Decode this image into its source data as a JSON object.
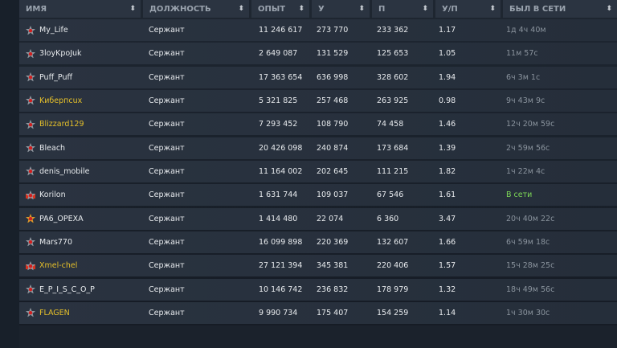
{
  "headers": [
    "Имя",
    "Должность",
    "Опыт",
    "У",
    "П",
    "У/П",
    "Был в сети"
  ],
  "colors": {
    "accent_name": "#e6c02a",
    "online": "#7ed957"
  },
  "rows": [
    {
      "name": "My_Life",
      "rank_icon": "star-gray",
      "highlight": false,
      "position": "Сержант",
      "exp": "11 246 617",
      "kills": "273 770",
      "deaths": "233 362",
      "kd": "1.17",
      "seen": "1д 4ч 40м"
    },
    {
      "name": "3loyKpoJuk",
      "rank_icon": "star-gray",
      "highlight": false,
      "position": "Сержант",
      "exp": "2 649 087",
      "kills": "131 529",
      "deaths": "125 653",
      "kd": "1.05",
      "seen": "11м 57с"
    },
    {
      "name": "Puff_Puff",
      "rank_icon": "star-gray",
      "highlight": false,
      "position": "Сержант",
      "exp": "17 363 654",
      "kills": "636 998",
      "deaths": "328 602",
      "kd": "1.94",
      "seen": "6ч 3м 1с"
    },
    {
      "name": "Kибepпcux",
      "rank_icon": "star-gray",
      "highlight": true,
      "position": "Сержант",
      "exp": "5 321 825",
      "kills": "257 468",
      "deaths": "263 925",
      "kd": "0.98",
      "seen": "9ч 43м 9с"
    },
    {
      "name": "Blizzard129",
      "rank_icon": "star-gray",
      "highlight": true,
      "position": "Сержант",
      "exp": "7 293 452",
      "kills": "108 790",
      "deaths": "74 458",
      "kd": "1.46",
      "seen": "12ч 20м 59с"
    },
    {
      "name": "Bleach",
      "rank_icon": "star-gray",
      "highlight": false,
      "position": "Сержант",
      "exp": "20 426 098",
      "kills": "240 874",
      "deaths": "173 684",
      "kd": "1.39",
      "seen": "2ч 59м 56с"
    },
    {
      "name": "denis_mobile",
      "rank_icon": "star-gray",
      "highlight": false,
      "position": "Сержант",
      "exp": "11 164 002",
      "kills": "202 645",
      "deaths": "111 215",
      "kd": "1.82",
      "seen": "1ч 22м 4с"
    },
    {
      "name": "Korilon",
      "rank_icon": "star-red-wings",
      "highlight": false,
      "position": "Сержант",
      "exp": "1 631 744",
      "kills": "109 037",
      "deaths": "67 546",
      "kd": "1.61",
      "seen": "В сети",
      "online": true
    },
    {
      "name": "PA6_OPEXA",
      "rank_icon": "star-gold",
      "highlight": false,
      "position": "Сержант",
      "exp": "1 414 480",
      "kills": "22 074",
      "deaths": "6 360",
      "kd": "3.47",
      "seen": "20ч 40м 22с"
    },
    {
      "name": "Mars770",
      "rank_icon": "star-gray",
      "highlight": false,
      "position": "Сержант",
      "exp": "16 099 898",
      "kills": "220 369",
      "deaths": "132 607",
      "kd": "1.66",
      "seen": "6ч 59м 18с"
    },
    {
      "name": "Xmel-chel",
      "rank_icon": "star-red-wings",
      "highlight": true,
      "position": "Сержант",
      "exp": "27 121 394",
      "kills": "345 381",
      "deaths": "220 406",
      "kd": "1.57",
      "seen": "15ч 28м 25с"
    },
    {
      "name": "E_P_I_S_C_O_P",
      "rank_icon": "star-gray",
      "highlight": false,
      "position": "Сержант",
      "exp": "10 146 742",
      "kills": "236 832",
      "deaths": "178 979",
      "kd": "1.32",
      "seen": "18ч 49м 56с"
    },
    {
      "name": "FLAGEN",
      "rank_icon": "star-gray",
      "highlight": true,
      "position": "Сержант",
      "exp": "9 990 734",
      "kills": "175 407",
      "deaths": "154 259",
      "kd": "1.14",
      "seen": "1ч 30м 30с"
    }
  ]
}
